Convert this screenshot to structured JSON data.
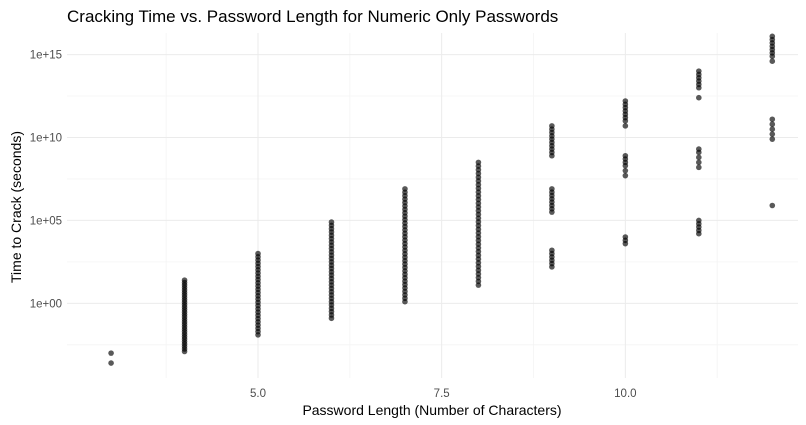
{
  "chart_data": {
    "type": "scatter",
    "title": "Cracking Time vs. Password Length for Numeric Only Passwords",
    "xlabel": "Password Length (Number of Characters)",
    "ylabel": "Time to Crack (seconds)",
    "x_ticks": [
      5.0,
      7.5,
      10.0
    ],
    "x_tick_labels": [
      "5.0",
      "7.5",
      "10.0"
    ],
    "xlim": [
      2.4,
      12.35
    ],
    "y_scale": "log10",
    "y_ticks": [
      1,
      100000,
      10000000000,
      1000000000000000
    ],
    "y_tick_labels": [
      "1e+00",
      "1e+05",
      "1e+10",
      "1e+15"
    ],
    "ylim_log10": [
      -4.5,
      16.3
    ],
    "grid": true,
    "point_color": "#000000",
    "point_opacity": 0.65,
    "series": [
      {
        "log10_ranges": [
          {
            "x": 3,
            "from": -3.6,
            "to": -3.0,
            "n": 2
          },
          {
            "x": 4,
            "from": -2.9,
            "to": 1.4,
            "n": 30
          },
          {
            "x": 5,
            "from": -1.9,
            "to": 3.0,
            "n": 26
          },
          {
            "x": 6,
            "from": -0.9,
            "to": 4.9,
            "n": 30
          },
          {
            "x": 7,
            "from": 0.1,
            "to": 6.9,
            "n": 34
          },
          {
            "x": 8,
            "from": 1.1,
            "to": 8.5,
            "n": 34
          }
        ],
        "log10_values": [
          {
            "x": 9,
            "y": [
              2.2,
              2.4,
              2.6,
              2.8,
              3.0,
              3.2,
              5.5,
              5.7,
              5.9,
              6.1,
              6.3,
              6.5,
              6.7,
              6.9,
              8.9,
              9.1,
              9.3,
              9.5,
              9.7,
              9.9,
              10.1,
              10.3,
              10.5,
              10.7
            ]
          },
          {
            "x": 10,
            "y": [
              3.6,
              3.8,
              4.0,
              7.7,
              8.0,
              8.3,
              8.5,
              8.7,
              8.9,
              10.7,
              11.0,
              11.2,
              11.4,
              11.6,
              11.8,
              12.0,
              12.2
            ]
          },
          {
            "x": 11,
            "y": [
              4.2,
              4.4,
              4.6,
              4.8,
              5.0,
              8.2,
              8.5,
              8.8,
              9.1,
              9.3,
              12.4,
              13.0,
              13.2,
              13.4,
              13.6,
              13.8,
              14.0
            ]
          },
          {
            "x": 12,
            "y": [
              5.9,
              9.9,
              10.2,
              10.5,
              10.8,
              11.1,
              14.6,
              14.9,
              15.1,
              15.3,
              15.5,
              15.7,
              15.9,
              16.1
            ]
          }
        ]
      }
    ]
  }
}
